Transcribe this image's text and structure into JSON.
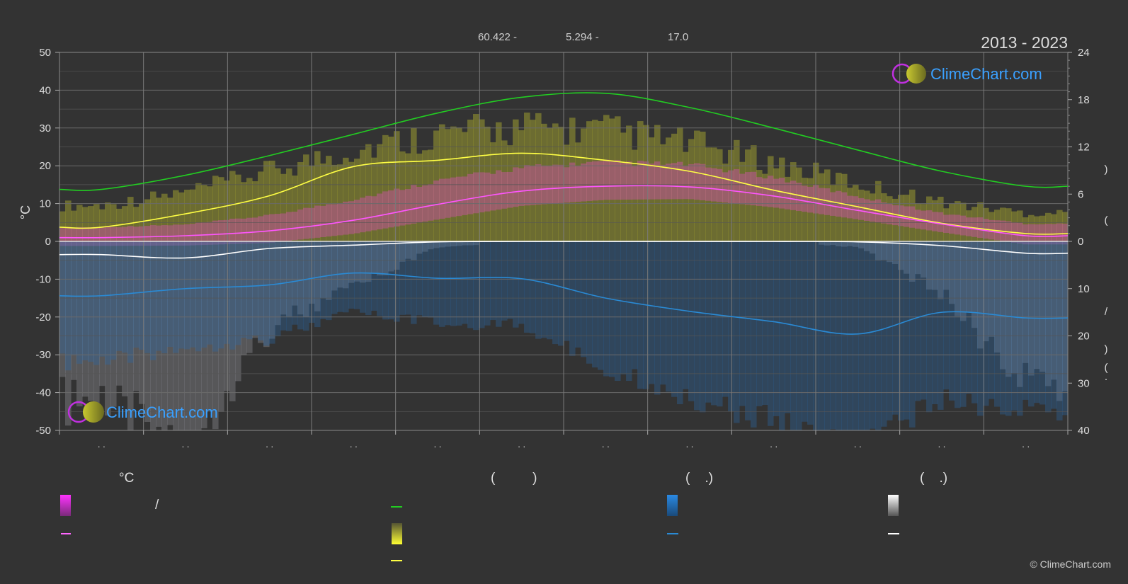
{
  "header": {
    "coord_lat": "60.422 -",
    "coord_lon": "5.294 -",
    "elevation": "17.0",
    "year_range": "2013 - 2023"
  },
  "brand": {
    "name": "ClimeChart.com",
    "copyright": "© ClimeChart.com"
  },
  "colors": {
    "background": "#333333",
    "daylight": "#22cc22",
    "sunshine": "#ffff44",
    "temperature": "#ff55ff",
    "precipitation": "#2a8ad4",
    "snow": "#ffffff",
    "brand": "#3aa0ff"
  },
  "legend": {
    "col1_header": "°C",
    "col1_mid": "/",
    "col2_header": "(          )",
    "col3_header": "(    .)",
    "col4_header": "(    .)"
  },
  "chart_data": {
    "type": "line",
    "ylabel": "°C",
    "ylim": [
      -50,
      50
    ],
    "y_ticks": [
      50,
      40,
      30,
      20,
      10,
      0,
      -10,
      -20,
      -30,
      -40,
      -50
    ],
    "right_axis_upper": {
      "ticks": [
        24,
        18,
        12,
        6,
        0
      ],
      "range": [
        0,
        24
      ]
    },
    "right_axis_lower": {
      "ticks": [
        0,
        10,
        20,
        30,
        40
      ],
      "range": [
        0,
        40
      ]
    },
    "right_axis_glyphs": [
      ")",
      "(",
      "/",
      ")",
      "(",
      "·"
    ],
    "x_months": 12,
    "x_tick_labels": [
      ". .",
      ". .",
      ". .",
      ". .",
      ". .",
      ". .",
      ". .",
      ". .",
      ". .",
      ". .",
      ". .",
      ". ."
    ],
    "series": [
      {
        "key": "daylight",
        "values": [
          6.6,
          8.4,
          10.9,
          13.6,
          16.3,
          18.3,
          18.8,
          17.0,
          14.4,
          11.6,
          8.9,
          7.0
        ]
      },
      {
        "key": "sunshine_avg",
        "values": [
          1.8,
          3.5,
          5.8,
          9.5,
          10.3,
          11.2,
          10.3,
          8.9,
          6.5,
          4.4,
          2.3,
          1.0
        ]
      },
      {
        "key": "temp_avg",
        "values": [
          1.0,
          1.5,
          2.8,
          5.6,
          9.8,
          13.3,
          14.6,
          14.4,
          12.0,
          8.2,
          4.6,
          1.5
        ]
      },
      {
        "key": "snow_avg",
        "values": [
          2.8,
          3.5,
          1.5,
          0.8,
          0.1,
          0.0,
          0.0,
          0.0,
          0.0,
          0.1,
          0.9,
          2.5
        ]
      },
      {
        "key": "precip_avg",
        "values": [
          11.5,
          10.0,
          9.2,
          6.7,
          7.8,
          7.9,
          12.0,
          14.8,
          17.0,
          19.6,
          15.0,
          16.2
        ]
      }
    ],
    "bands": {
      "sunshine_daily_max": [
        5.3,
        7.2,
        10.4,
        13.5,
        15.9,
        16.8,
        16.4,
        14.5,
        11.6,
        8.5,
        5.8,
        4.2
      ],
      "temp_daily_max": [
        3.4,
        4.0,
        6.2,
        10.0,
        14.5,
        17.6,
        18.9,
        18.3,
        15.3,
        10.7,
        6.7,
        4.2
      ],
      "temp_daily_min": [
        -1.2,
        -1.1,
        -0.4,
        2.0,
        5.8,
        9.4,
        11.0,
        11.2,
        9.0,
        5.8,
        2.4,
        -0.8
      ]
    }
  }
}
